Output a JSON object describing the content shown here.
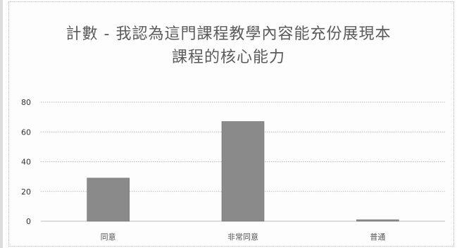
{
  "chart_data": {
    "type": "bar",
    "title": "計數 - 我認為這門課程教學內容能充份展現本課程的核心能力",
    "title_lines": [
      "計數 - 我認為這門課程教學內容能充份展現本",
      "課程的核心能力"
    ],
    "categories": [
      "同意",
      "非常同意",
      "普通"
    ],
    "values": [
      29,
      67,
      1
    ],
    "ylim": [
      0,
      80
    ],
    "yticks": [
      0,
      20,
      40,
      60,
      80
    ],
    "grid": true,
    "legend": "none",
    "xlabel": "",
    "ylabel": "",
    "colors": {
      "bar": "#8a8a8a",
      "bar_edge": "#6e6e6e",
      "grid": "#bdbdbd"
    }
  }
}
